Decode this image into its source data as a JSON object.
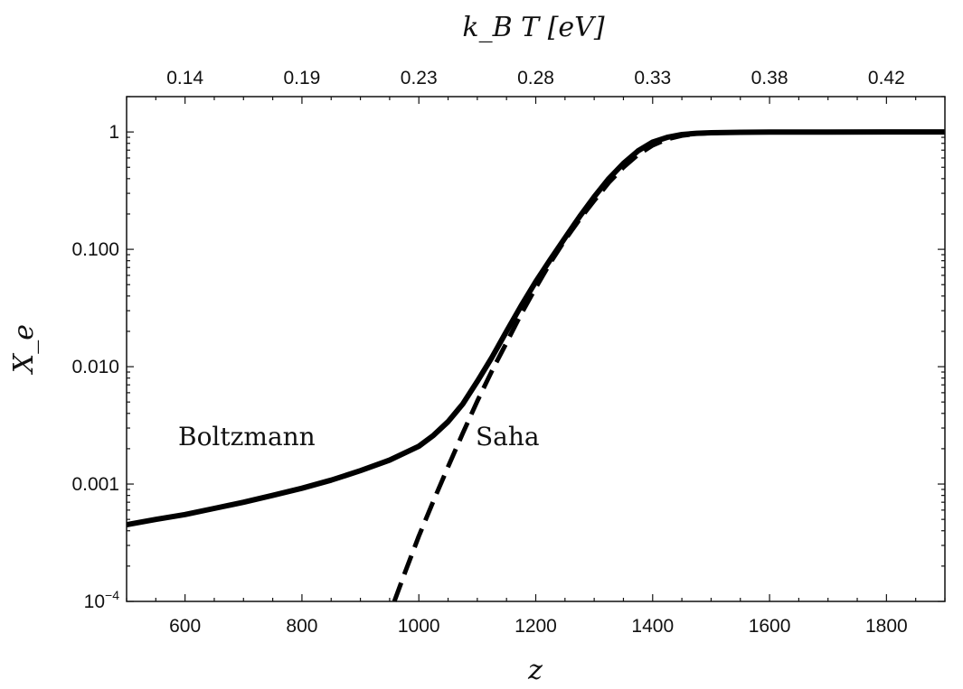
{
  "chart_data": {
    "type": "line",
    "title": "",
    "xlabel": "z",
    "ylabel": "X_e",
    "top_axis_label": "k_B T [eV]",
    "xlim": [
      500,
      1900
    ],
    "ylim": [
      0.0001,
      2
    ],
    "y_scale": "log",
    "grid": false,
    "x_ticks": [
      600,
      800,
      1000,
      1200,
      1400,
      1600,
      1800
    ],
    "x_tick_labels": [
      "600",
      "800",
      "1000",
      "1200",
      "1400",
      "1600",
      "1800"
    ],
    "y_ticks": [
      0.0001,
      0.001,
      0.01,
      0.1,
      1
    ],
    "y_tick_labels": [
      "",
      "0.001",
      "0.010",
      "0.100",
      "1"
    ],
    "y_min_tick_base": "10",
    "y_min_tick_exp": "−4",
    "top_ticks_z": [
      600,
      800,
      1000,
      1200,
      1400,
      1600,
      1800
    ],
    "top_tick_labels": [
      "0.14",
      "0.19",
      "0.23",
      "0.28",
      "0.33",
      "0.38",
      "0.42"
    ],
    "series": [
      {
        "name": "Boltzmann",
        "style": "solid",
        "color": "#000000",
        "x": [
          500,
          550,
          600,
          650,
          700,
          750,
          800,
          850,
          900,
          950,
          1000,
          1025,
          1050,
          1075,
          1100,
          1125,
          1150,
          1175,
          1200,
          1225,
          1250,
          1275,
          1300,
          1325,
          1350,
          1375,
          1400,
          1425,
          1450,
          1475,
          1500,
          1550,
          1600,
          1700,
          1800,
          1900
        ],
        "y": [
          0.00045,
          0.0005,
          0.00055,
          0.00062,
          0.0007,
          0.0008,
          0.00092,
          0.00108,
          0.0013,
          0.0016,
          0.0021,
          0.0026,
          0.0034,
          0.0048,
          0.0075,
          0.012,
          0.02,
          0.033,
          0.053,
          0.082,
          0.125,
          0.19,
          0.28,
          0.4,
          0.54,
          0.69,
          0.82,
          0.9,
          0.95,
          0.975,
          0.985,
          0.993,
          0.997,
          0.999,
          1.0,
          1.0
        ]
      },
      {
        "name": "Saha",
        "style": "dashed",
        "color": "#000000",
        "x": [
          958,
          975,
          1000,
          1025,
          1050,
          1075,
          1100,
          1125,
          1150,
          1175,
          1200,
          1225,
          1250,
          1275,
          1300,
          1325,
          1350,
          1375,
          1400,
          1425,
          1450,
          1475,
          1500,
          1550,
          1600,
          1700,
          1800,
          1900
        ],
        "y": [
          0.0001,
          0.00017,
          0.00036,
          0.00072,
          0.0014,
          0.0027,
          0.0051,
          0.0092,
          0.016,
          0.028,
          0.047,
          0.077,
          0.12,
          0.18,
          0.26,
          0.37,
          0.5,
          0.64,
          0.77,
          0.87,
          0.93,
          0.965,
          0.98,
          0.992,
          0.997,
          0.999,
          1.0,
          1.0
        ]
      }
    ]
  }
}
